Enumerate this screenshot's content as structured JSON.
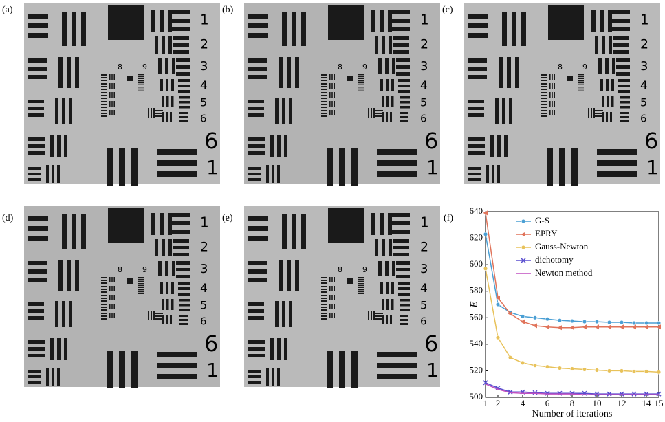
{
  "panel_labels": [
    "(a)",
    "(b)",
    "(c)",
    "(d)",
    "(e)",
    "(f)"
  ],
  "target_labels": [
    "1",
    "2",
    "3",
    "4",
    "5",
    "6",
    "8",
    "9",
    "6",
    "1"
  ],
  "chart_data": {
    "type": "line",
    "x_label": "Number of iterations",
    "y_label": "E",
    "x": [
      1,
      2,
      3,
      4,
      5,
      6,
      7,
      8,
      9,
      10,
      11,
      12,
      13,
      14,
      15
    ],
    "xlim": [
      1,
      15
    ],
    "xticks": [
      1,
      2,
      4,
      6,
      8,
      10,
      12,
      14,
      15
    ],
    "ylim": [
      500,
      640
    ],
    "yticks": [
      500,
      520,
      540,
      560,
      580,
      600,
      620,
      640
    ],
    "legend": "upper center",
    "series": [
      {
        "name": "G-S",
        "color": "#4a9fd4",
        "marker": "o",
        "values": [
          623,
          570,
          564,
          561,
          560,
          559,
          558,
          557.5,
          557,
          557,
          556.5,
          556.5,
          556,
          556,
          556
        ]
      },
      {
        "name": "EPRY",
        "color": "#e0735a",
        "marker": "<",
        "values": [
          639,
          575,
          563,
          557,
          554,
          553,
          552.5,
          552.5,
          553,
          553,
          553,
          553,
          553,
          553,
          553
        ]
      },
      {
        "name": "Gauss-Newton",
        "color": "#e8c25a",
        "marker": "o",
        "values": [
          597,
          545,
          530,
          526,
          524,
          523,
          522,
          521.5,
          521,
          520.5,
          520,
          520,
          519.5,
          519.5,
          519
        ]
      },
      {
        "name": "dichotomy",
        "color": "#5a4fcf",
        "marker": "x",
        "values": [
          511,
          507,
          504,
          504,
          503.5,
          503,
          503,
          503,
          503,
          502.5,
          502.5,
          502.5,
          502.5,
          502.5,
          502.5
        ]
      },
      {
        "name": "Newton method",
        "color": "#c04fc0",
        "marker": "none",
        "values": [
          510,
          506,
          503.5,
          503,
          503,
          502.5,
          502.5,
          502.5,
          502,
          502,
          502,
          502,
          502,
          502,
          502
        ]
      }
    ]
  }
}
